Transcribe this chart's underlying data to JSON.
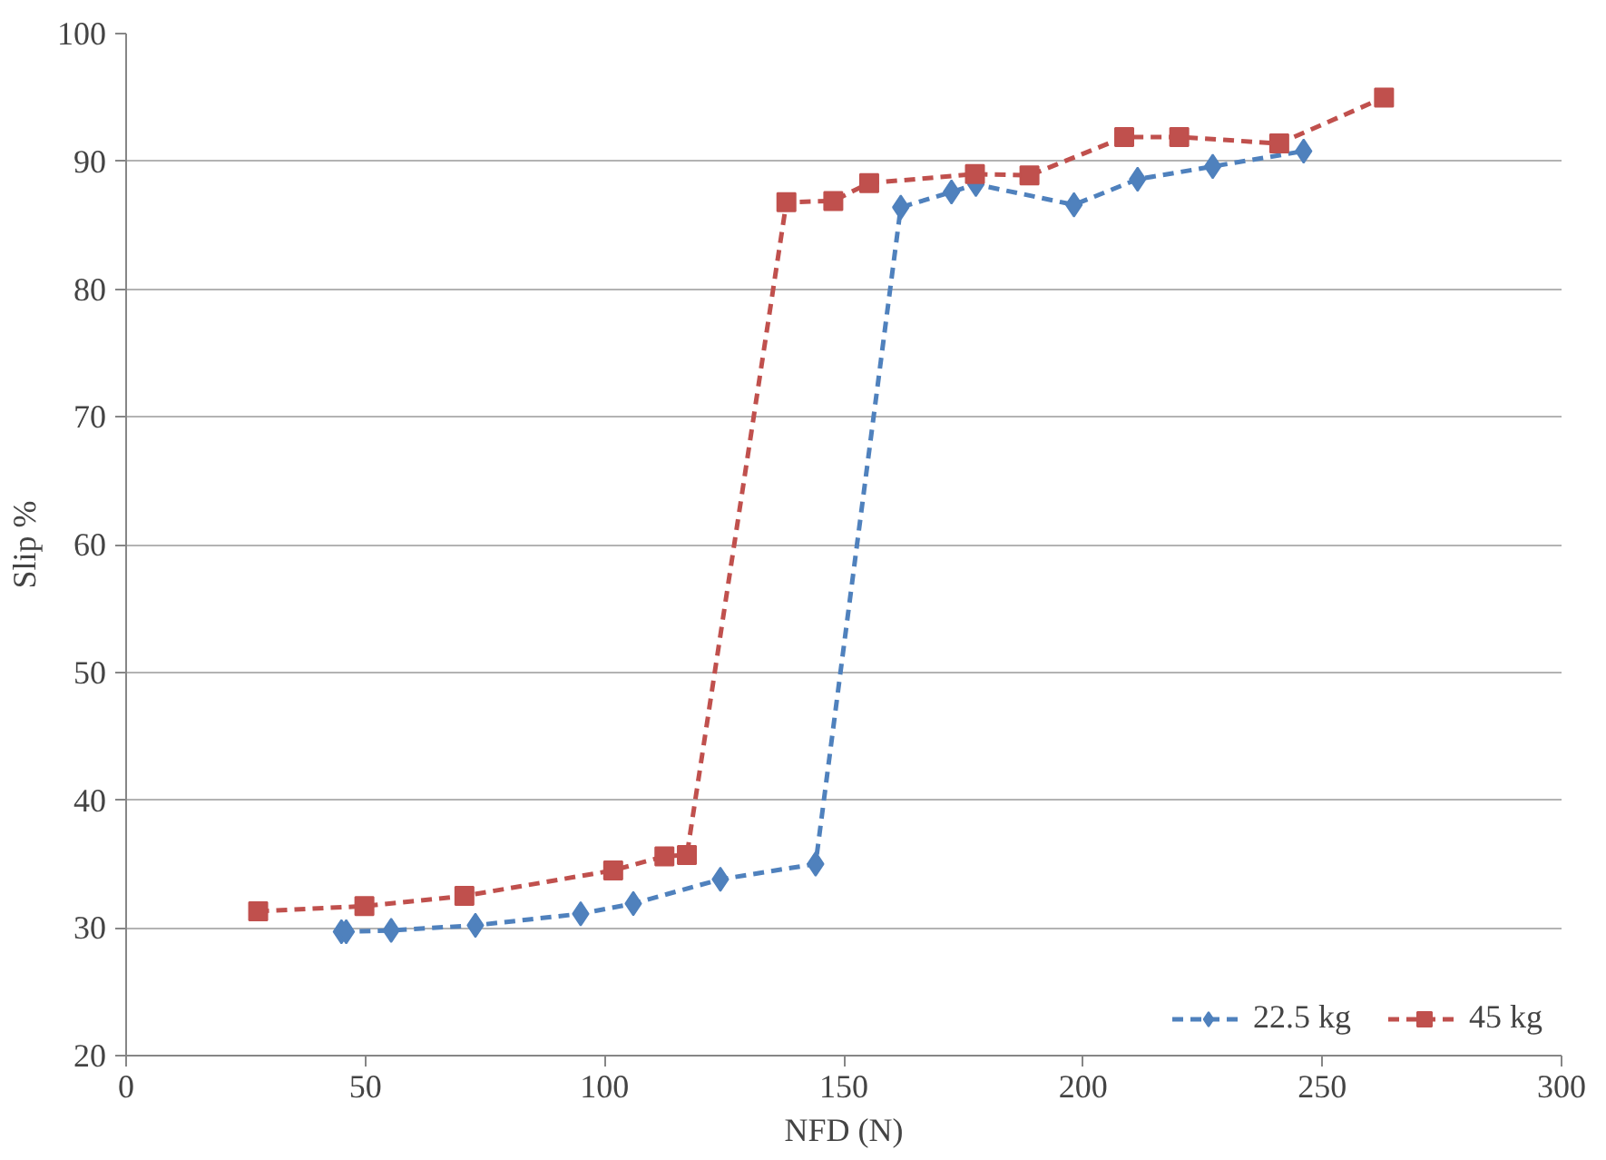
{
  "chart_data": {
    "type": "line",
    "xlabel": "NFD (N)",
    "ylabel": "Slip %",
    "xlim": [
      0,
      300
    ],
    "xticks": [
      0,
      50,
      100,
      150,
      200,
      250,
      300
    ],
    "ylim": [
      20,
      100
    ],
    "yticks": [
      20,
      30,
      40,
      50,
      60,
      70,
      80,
      90,
      100
    ],
    "grid": "y",
    "legend": "bottom right",
    "line_style": "dashed",
    "series": [
      {
        "name": "22.5 kg",
        "color": "#4f81bd",
        "marker": "diamond",
        "x": [
          45,
          46,
          55.4,
          73,
          95,
          106,
          124.2,
          144.1,
          161.9,
          172.5,
          177.6,
          198.1,
          211.4,
          227.1,
          246.1
        ],
        "values": [
          29.7,
          29.7,
          29.8,
          30.2,
          31.1,
          31.9,
          33.8,
          35.0,
          86.4,
          87.6,
          88.2,
          86.6,
          88.6,
          89.6,
          90.8
        ]
      },
      {
        "name": "45 kg",
        "color": "#c0504d",
        "marker": "square",
        "x": [
          27.6,
          49.8,
          70.7,
          101.8,
          112.5,
          117.2,
          138,
          147.8,
          155.3,
          177.4,
          188.8,
          208.6,
          220.1,
          241,
          262.9
        ],
        "values": [
          31.3,
          31.7,
          32.5,
          34.5,
          35.6,
          35.7,
          86.8,
          86.9,
          88.3,
          89.0,
          88.9,
          91.9,
          91.9,
          91.4,
          95.0
        ]
      }
    ]
  }
}
